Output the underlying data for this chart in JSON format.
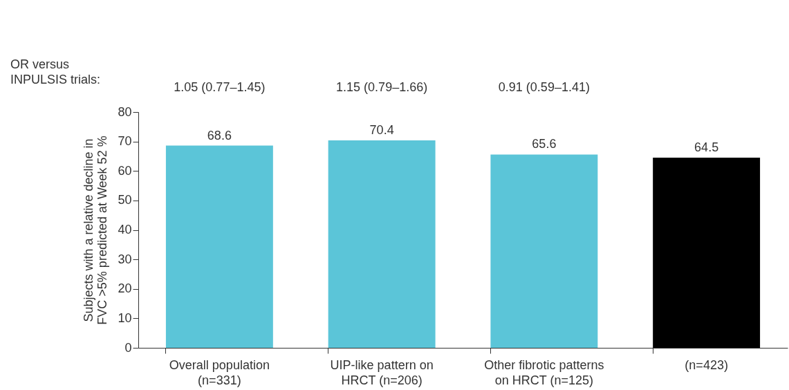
{
  "chart_data": {
    "type": "bar",
    "categories": [
      "Overall population\n(n=331)",
      "UIP-like pattern on\nHRCT (n=206)",
      "Other fibrotic patterns\non HRCT (n=125)",
      "(n=423)"
    ],
    "values": [
      68.6,
      70.4,
      65.6,
      64.5
    ],
    "colors": [
      "#5bc5d8",
      "#5bc5d8",
      "#5bc5d8",
      "#000000"
    ],
    "ylabel": "Subjects with a relative decline in\nFVC >5% predicted at Week 52 %",
    "ylim": [
      0,
      80
    ],
    "yticks": [
      0,
      10,
      20,
      30,
      40,
      50,
      60,
      70,
      80
    ],
    "data_labels": true,
    "grid": false,
    "annotations": [
      "OR versus\nINPULSIS trials:",
      "1.05 (0.77–1.45)",
      "1.15 (0.79–1.66)",
      "0.91 (0.59–1.41)"
    ]
  }
}
